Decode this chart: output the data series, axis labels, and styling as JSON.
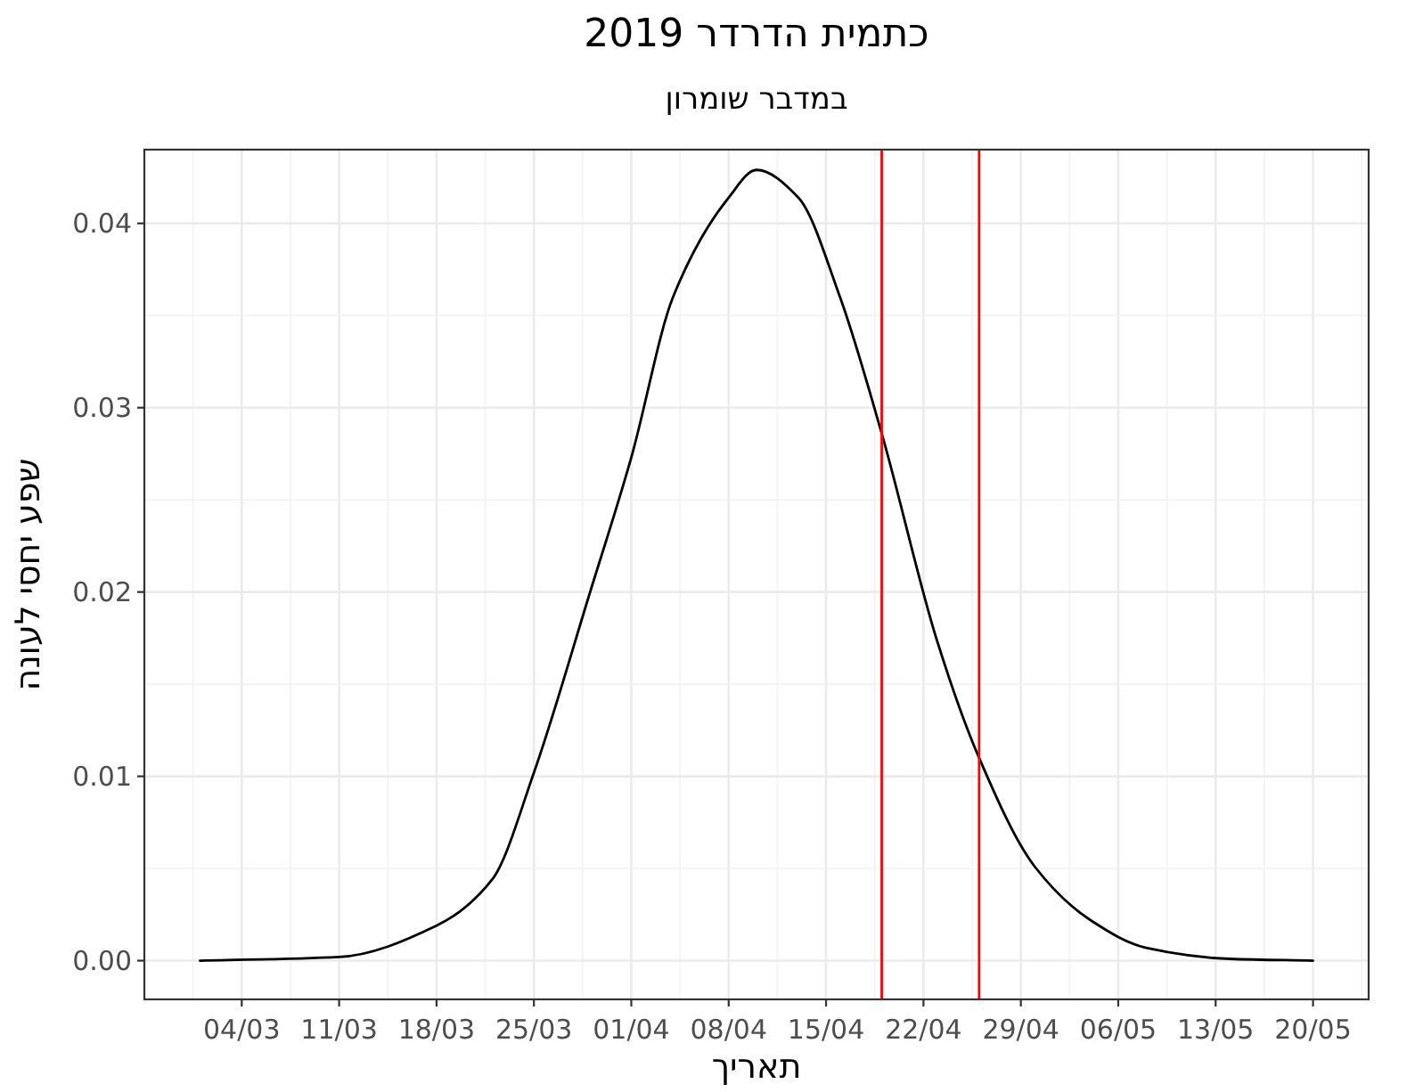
{
  "chart_data": {
    "type": "line",
    "title": "כתמית הדרדר 2019",
    "subtitle": "במדבר שומרון",
    "xlabel": "תאריך",
    "ylabel": "שפע יחסי לעונה",
    "series": [
      {
        "color": "#000000",
        "x": [
          "2019-03-01",
          "2019-03-11",
          "2019-03-18",
          "2019-03-22",
          "2019-03-25",
          "2019-03-29",
          "2019-04-01",
          "2019-04-04",
          "2019-04-08",
          "2019-04-10",
          "2019-04-13",
          "2019-04-16",
          "2019-04-19",
          "2019-04-23",
          "2019-04-26",
          "2019-04-30",
          "2019-05-04",
          "2019-05-08",
          "2019-05-14",
          "2019-05-20"
        ],
        "values": [
          0.0,
          0.0002,
          0.0019,
          0.0044,
          0.0102,
          0.0199,
          0.0273,
          0.036,
          0.0414,
          0.0429,
          0.0414,
          0.036,
          0.0286,
          0.0173,
          0.011,
          0.0051,
          0.0022,
          0.0007,
          0.0001,
          0.0
        ]
      }
    ],
    "xlim": [
      "2019-02-25",
      "2019-05-24"
    ],
    "xticks": [
      {
        "value": "2019-03-04",
        "label": "04/03"
      },
      {
        "value": "2019-03-11",
        "label": "11/03"
      },
      {
        "value": "2019-03-18",
        "label": "18/03"
      },
      {
        "value": "2019-03-25",
        "label": "25/03"
      },
      {
        "value": "2019-04-01",
        "label": "01/04"
      },
      {
        "value": "2019-04-08",
        "label": "08/04"
      },
      {
        "value": "2019-04-15",
        "label": "15/04"
      },
      {
        "value": "2019-04-22",
        "label": "22/04"
      },
      {
        "value": "2019-04-29",
        "label": "29/04"
      },
      {
        "value": "2019-05-06",
        "label": "06/05"
      },
      {
        "value": "2019-05-13",
        "label": "13/05"
      },
      {
        "value": "2019-05-20",
        "label": "20/05"
      }
    ],
    "ylim": [
      -0.0021,
      0.044
    ],
    "yticks": [
      {
        "value": 0,
        "label": "0.00"
      },
      {
        "value": 0.01,
        "label": "0.01"
      },
      {
        "value": 0.02,
        "label": "0.02"
      },
      {
        "value": 0.03,
        "label": "0.03"
      },
      {
        "value": 0.04,
        "label": "0.04"
      }
    ],
    "ref_lines": [
      {
        "axis": "x",
        "value": "2019-04-19",
        "color": "#ff0000"
      },
      {
        "axis": "x",
        "value": "2019-04-26",
        "color": "#ff0000"
      }
    ],
    "grid": true,
    "marker": "none",
    "line_style": "solid"
  }
}
